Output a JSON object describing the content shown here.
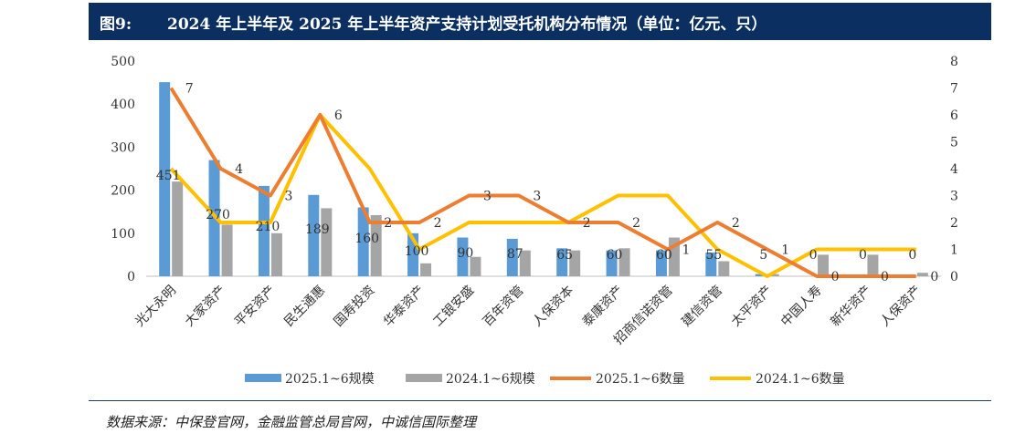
{
  "figure": {
    "label": "图9:",
    "title": "2024 年上半年及 2025 年上半年资产支持计划受托机构分布情况（单位：亿元、只）",
    "source": "数据来源：中保登官网，金融监管总局官网，中诚信国际整理"
  },
  "colors": {
    "title_bg": "#0b2f60",
    "bar_2025": "#5b9bd5",
    "bar_2024": "#a5a5a5",
    "line_2025": "#ed7d31",
    "line_2024": "#ffc000"
  },
  "chart_data": {
    "type": "bar",
    "categories": [
      "光大永明",
      "大家资产",
      "平安资产",
      "民生通惠",
      "国寿投资",
      "华泰资产",
      "工银安盛",
      "百年资管",
      "人保资本",
      "泰康资产",
      "招商信诺资管",
      "建信资管",
      "太平资产",
      "中国人寿",
      "新华资产",
      "人保资产"
    ],
    "series": [
      {
        "name": "2025.1~6规模",
        "kind": "bar",
        "axis": "left",
        "values": [
          451,
          270,
          210,
          189,
          160,
          100,
          90,
          87,
          65,
          60,
          60,
          55,
          5,
          0,
          0,
          0
        ],
        "labels": [
          "451",
          "270",
          "210",
          "189",
          "160",
          "100",
          "90",
          "87",
          "65",
          "60",
          "60",
          "55",
          "5",
          "0",
          "0",
          "0"
        ]
      },
      {
        "name": "2024.1~6规模",
        "kind": "bar",
        "axis": "left",
        "values": [
          220,
          120,
          100,
          158,
          142,
          30,
          45,
          60,
          60,
          65,
          90,
          35,
          5,
          50,
          50,
          8
        ]
      },
      {
        "name": "2025.1~6数量",
        "kind": "line",
        "axis": "right",
        "values": [
          7,
          4,
          3,
          6,
          2,
          2,
          3,
          3,
          2,
          2,
          1,
          2,
          1,
          0,
          0,
          0
        ],
        "labels": [
          "7",
          "4",
          "3",
          "6",
          "2",
          "2",
          "3",
          "3",
          "2",
          "2",
          "1",
          "2",
          "1",
          "0",
          "0",
          "0"
        ]
      },
      {
        "name": "2024.1~6数量",
        "kind": "line",
        "axis": "right",
        "values": [
          4,
          2,
          2,
          6,
          4,
          1,
          2,
          2,
          2,
          3,
          3,
          1,
          0,
          1,
          1,
          1
        ]
      }
    ],
    "left_axis": {
      "min": 0,
      "max": 500,
      "ticks": [
        "0",
        "100",
        "200",
        "300",
        "400",
        "500"
      ]
    },
    "right_axis": {
      "min": 0,
      "max": 8,
      "ticks": [
        "0",
        "1",
        "2",
        "3",
        "4",
        "5",
        "6",
        "7",
        "8"
      ]
    },
    "legend": [
      "2025.1~6规模",
      "2024.1~6规模",
      "2025.1~6数量",
      "2024.1~6数量"
    ],
    "legend_position": "bottom",
    "grid": false
  }
}
